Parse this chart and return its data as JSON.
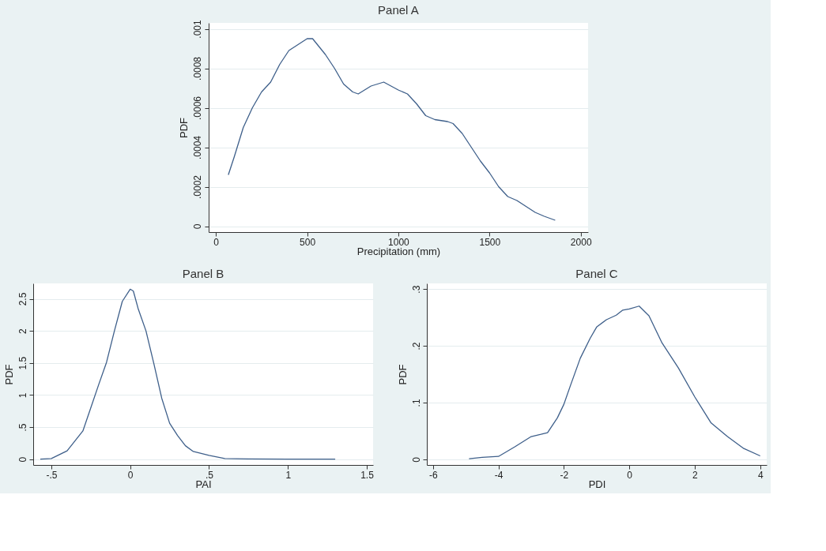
{
  "chart_data": [
    {
      "type": "line",
      "title": "Panel A",
      "xlabel": "Precipitation (mm)",
      "ylabel": "PDF",
      "color": "#3e5f8a",
      "grid": "y",
      "x": [
        68,
        100,
        150,
        200,
        250,
        300,
        350,
        400,
        450,
        500,
        530,
        600,
        650,
        700,
        750,
        780,
        850,
        920,
        1000,
        1050,
        1100,
        1150,
        1200,
        1270,
        1300,
        1350,
        1400,
        1450,
        1500,
        1550,
        1600,
        1650,
        1700,
        1750,
        1800,
        1860
      ],
      "values": [
        0.00026,
        0.00035,
        0.0005,
        0.0006,
        0.00068,
        0.00073,
        0.00082,
        0.00089,
        0.00092,
        0.00095,
        0.00095,
        0.00087,
        0.0008,
        0.00072,
        0.00068,
        0.00067,
        0.00071,
        0.00073,
        0.00069,
        0.00067,
        0.00062,
        0.00056,
        0.00054,
        0.00053,
        0.00052,
        0.00047,
        0.0004,
        0.00033,
        0.00027,
        0.0002,
        0.00015,
        0.00013,
        0.0001,
        7e-05,
        5e-05,
        3e-05
      ],
      "xlim": [
        -40,
        2040
      ],
      "ylim": [
        -3e-05,
        0.00103
      ],
      "xticks": [
        0,
        500,
        1000,
        1500,
        2000
      ],
      "yticks": [
        0,
        {
          "value": 0.0002,
          "label": ".0002"
        },
        {
          "value": 0.0004,
          "label": ".0004"
        },
        {
          "value": 0.0006,
          "label": ".0006"
        },
        {
          "value": 0.0008,
          "label": ".0008"
        },
        {
          "value": 0.001,
          "label": ".001"
        }
      ]
    },
    {
      "type": "line",
      "title": "Panel B",
      "xlabel": "PAI",
      "ylabel": "PDF",
      "color": "#3e5f8a",
      "grid": "y",
      "x": [
        -0.57,
        -0.5,
        -0.4,
        -0.3,
        -0.2,
        -0.15,
        -0.1,
        -0.05,
        0,
        0.02,
        0.05,
        0.1,
        0.15,
        0.2,
        0.25,
        0.3,
        0.35,
        0.4,
        0.45,
        0.5,
        0.6,
        0.75,
        1.0,
        1.3
      ],
      "values": [
        0,
        0.01,
        0.13,
        0.44,
        1.16,
        1.51,
        2.0,
        2.46,
        2.65,
        2.62,
        2.35,
        2.0,
        1.49,
        0.95,
        0.56,
        0.37,
        0.21,
        0.12,
        0.09,
        0.06,
        0.01,
        0.005,
        0,
        0
      ],
      "xlim": [
        -0.615,
        1.54
      ],
      "ylim": [
        -0.09,
        2.74
      ],
      "xticks": [
        {
          "value": -0.5,
          "label": "-.5"
        },
        0,
        {
          "value": 0.5,
          "label": ".5"
        },
        1,
        1.5
      ],
      "yticks": [
        0,
        {
          "value": 0.5,
          "label": ".5"
        },
        1,
        1.5,
        2,
        2.5
      ]
    },
    {
      "type": "line",
      "title": "Panel C",
      "xlabel": "PDI",
      "ylabel": "PDF",
      "color": "#3e5f8a",
      "grid": "y",
      "x": [
        -4.9,
        -4.5,
        -4,
        -3.5,
        -3,
        -2.7,
        -2.5,
        -2.2,
        -2,
        -1.8,
        -1.5,
        -1.2,
        -1,
        -0.7,
        -0.4,
        -0.2,
        0,
        0.3,
        0.6,
        1,
        1.5,
        2,
        2.5,
        3,
        3.5,
        4
      ],
      "values": [
        0.001,
        0.0035,
        0.005,
        0.022,
        0.04,
        0.044,
        0.047,
        0.073,
        0.097,
        0.13,
        0.178,
        0.213,
        0.233,
        0.246,
        0.254,
        0.263,
        0.265,
        0.27,
        0.253,
        0.205,
        0.161,
        0.11,
        0.064,
        0.04,
        0.019,
        0.006
      ],
      "xlim": [
        -6.19,
        4.2
      ],
      "ylim": [
        -0.01,
        0.31
      ],
      "xticks": [
        -6,
        -4,
        -2,
        0,
        2,
        4
      ],
      "yticks": [
        0,
        {
          "value": 0.1,
          "label": ".1"
        },
        {
          "value": 0.2,
          "label": ".2"
        },
        {
          "value": 0.3,
          "label": ".3"
        }
      ]
    }
  ]
}
